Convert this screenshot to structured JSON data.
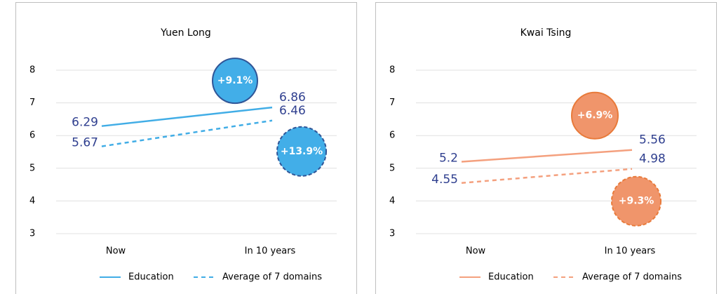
{
  "chart_data": [
    {
      "type": "line",
      "title": "Yuen Long",
      "categories": [
        "Now",
        "In 10 years"
      ],
      "ylim": [
        3,
        8
      ],
      "yticks": [
        3,
        4,
        5,
        6,
        7,
        8
      ],
      "grid": true,
      "series": [
        {
          "name": "Education",
          "color": "#41ade6",
          "line_style": "solid",
          "values": [
            6.29,
            6.86
          ],
          "change_label": "+9.1%",
          "bubble_color": "#42aee8",
          "bubble_border": "#2f5597"
        },
        {
          "name": "Average of 7 domains",
          "color": "#41ade6",
          "line_style": "dashed",
          "values": [
            5.67,
            6.46
          ],
          "change_label": "+13.9%",
          "bubble_color": "#42aee8",
          "bubble_border": "#2f5597"
        }
      ]
    },
    {
      "type": "line",
      "title": "Kwai Tsing",
      "categories": [
        "Now",
        "In 10 years"
      ],
      "ylim": [
        3,
        8
      ],
      "yticks": [
        3,
        4,
        5,
        6,
        7,
        8
      ],
      "grid": true,
      "series": [
        {
          "name": "Education",
          "color": "#f4a07e",
          "line_style": "solid",
          "values": [
            5.2,
            5.56
          ],
          "change_label": "+6.9%",
          "bubble_color": "#f0956b",
          "bubble_border": "#e87a3a"
        },
        {
          "name": "Average of 7 domains",
          "color": "#f4a07e",
          "line_style": "dashed",
          "values": [
            4.55,
            4.98
          ],
          "change_label": "+9.3%",
          "bubble_color": "#f0956b",
          "bubble_border": "#e87a3a"
        }
      ]
    }
  ]
}
